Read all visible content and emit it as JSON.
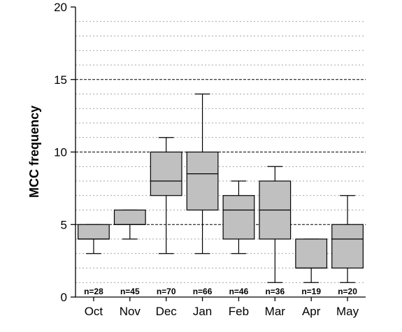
{
  "chart_data": {
    "type": "box",
    "ylabel": "MCC frequency",
    "xlabel": "",
    "ylim": [
      0,
      20
    ],
    "yticks": [
      0,
      5,
      10,
      15,
      20
    ],
    "grid": {
      "major": [
        5,
        10,
        15
      ],
      "minor_step": 1
    },
    "categories": [
      "Oct",
      "Nov",
      "Dec",
      "Jan",
      "Feb",
      "Mar",
      "Apr",
      "May"
    ],
    "boxes": [
      {
        "category": "Oct",
        "min": 3,
        "q1": 4,
        "median": 4,
        "q3": 5,
        "max": 5,
        "n_label": "n=28"
      },
      {
        "category": "Nov",
        "min": 4,
        "q1": 5,
        "median": 5,
        "q3": 6,
        "max": 6,
        "n_label": "n=45"
      },
      {
        "category": "Dec",
        "min": 3,
        "q1": 7,
        "median": 8,
        "q3": 10,
        "max": 11,
        "n_label": "n=70"
      },
      {
        "category": "Jan",
        "min": 3,
        "q1": 6,
        "median": 8.5,
        "q3": 10,
        "max": 14,
        "n_label": "n=66"
      },
      {
        "category": "Feb",
        "min": 3,
        "q1": 4,
        "median": 6,
        "q3": 7,
        "max": 8,
        "n_label": "n=46"
      },
      {
        "category": "Mar",
        "min": 1,
        "q1": 4,
        "median": 6,
        "q3": 8,
        "max": 9,
        "n_label": "n=36"
      },
      {
        "category": "Apr",
        "min": 1,
        "q1": 2,
        "median": 2,
        "q3": 4,
        "max": 4,
        "n_label": "n=19"
      },
      {
        "category": "May",
        "min": 1,
        "q1": 2,
        "median": 4,
        "q3": 5,
        "max": 7,
        "n_label": "n=20"
      }
    ],
    "box_fill": "#c0c0c0"
  }
}
